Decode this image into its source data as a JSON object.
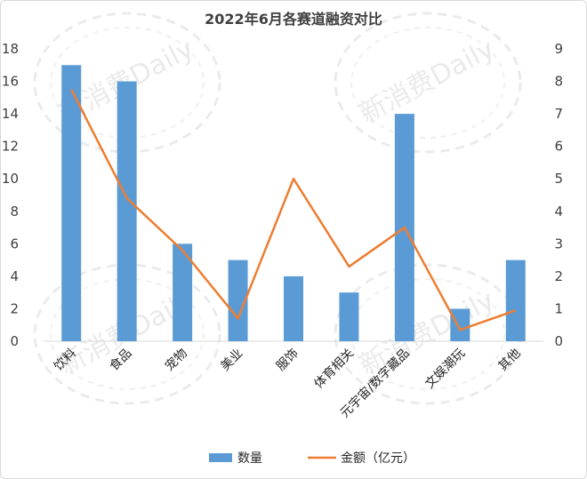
{
  "chart_data": {
    "type": "bar",
    "title": "2022年6月各赛道融资对比",
    "categories": [
      "饮料",
      "食品",
      "宠物",
      "美业",
      "服饰",
      "体育相关",
      "元宇宙/数字藏品",
      "文娱潮玩",
      "其他"
    ],
    "series": [
      {
        "name": "数量",
        "type": "bar",
        "axis": "left",
        "values": [
          17,
          16,
          6,
          5,
          4,
          3,
          14,
          2,
          5
        ]
      },
      {
        "name": "金额（亿元）",
        "type": "line",
        "axis": "right",
        "values": [
          7.75,
          4.4,
          2.8,
          0.7,
          5.0,
          2.3,
          3.5,
          0.35,
          0.95
        ]
      }
    ],
    "y_left": {
      "ylim": [
        0,
        18
      ],
      "ticks": [
        0,
        2,
        4,
        6,
        8,
        10,
        12,
        14,
        16,
        18
      ]
    },
    "y_right": {
      "ylim": [
        0,
        9
      ],
      "ticks": [
        0,
        1,
        2,
        3,
        4,
        5,
        6,
        7,
        8,
        9
      ]
    },
    "legend_position": "bottom",
    "grid": false,
    "colors": {
      "bar": "#5b9bd5",
      "line": "#ed7d31",
      "axis": "#d9d9d9",
      "text": "#404040"
    }
  },
  "watermark": {
    "text": "新消费Daily"
  }
}
